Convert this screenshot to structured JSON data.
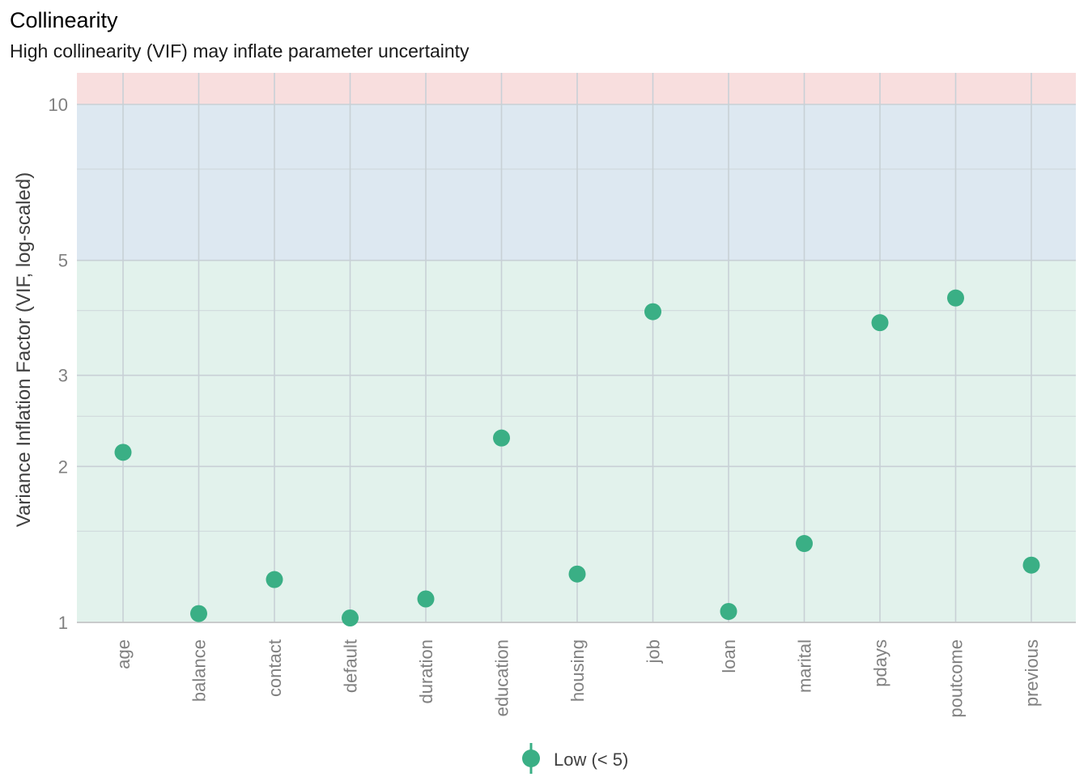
{
  "chart_data": {
    "type": "scatter",
    "title": "Collinearity",
    "subtitle": "High collinearity (VIF) may inflate parameter uncertainty",
    "ylabel": "Variance Inflation Factor (VIF, log-scaled)",
    "xlabel": "",
    "y_scale": "log",
    "ylim": [
      1,
      12
    ],
    "yticks": [
      1,
      2,
      3,
      5,
      10
    ],
    "y_minor_ticks": [
      1.5,
      2.5,
      4,
      7.5
    ],
    "grid": true,
    "categories": [
      "age",
      "balance",
      "contact",
      "default",
      "duration",
      "education",
      "housing",
      "job",
      "loan",
      "marital",
      "pdays",
      "poutcome",
      "previous"
    ],
    "series": [
      {
        "name": "Low (< 5)",
        "color": "#3aaf85",
        "values": [
          2.13,
          1.04,
          1.21,
          1.02,
          1.11,
          2.27,
          1.24,
          3.98,
          1.05,
          1.42,
          3.79,
          4.23,
          1.29
        ]
      }
    ],
    "bands": [
      {
        "from": 1,
        "to": 5,
        "color": "#e2f2ec"
      },
      {
        "from": 5,
        "to": 10,
        "color": "#dde8f1"
      },
      {
        "from": 10,
        "to": 12,
        "color": "#f8dede"
      }
    ],
    "legend": {
      "position": "bottom",
      "label": "Low (< 5)"
    }
  }
}
